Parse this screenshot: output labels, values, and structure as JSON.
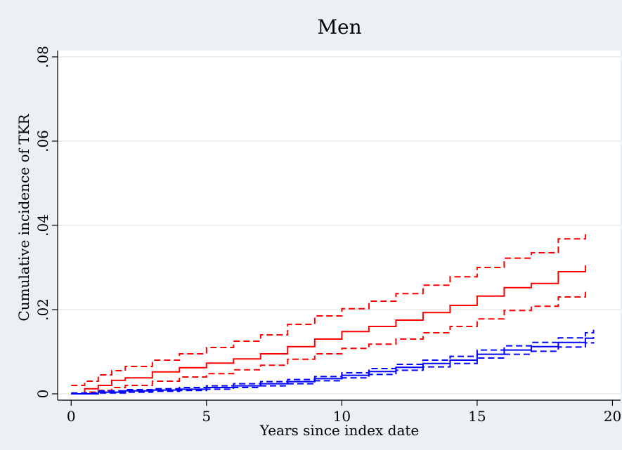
{
  "chart_data": {
    "type": "line",
    "title": "Men",
    "xlabel": "Years since index date",
    "ylabel": "Cumulative incidence of TKR",
    "xlim": [
      -0.5,
      20.3
    ],
    "ylim": [
      -0.0015,
      0.0815
    ],
    "xticks": [
      0,
      5,
      10,
      15,
      20
    ],
    "xtick_labels": [
      "0",
      "5",
      "10",
      "15",
      "20"
    ],
    "yticks": [
      0,
      0.02,
      0.04,
      0.06,
      0.08
    ],
    "ytick_labels": [
      "0",
      ".02",
      ".04",
      ".06",
      ".08"
    ],
    "grid": true,
    "legend": "none",
    "background_color": "#eaf0f3",
    "plot_background": "#ffffff",
    "gridline_color": "#e6e6e6",
    "series": [
      {
        "color": "#ff0000",
        "dash": false,
        "x": [
          0,
          0.5,
          1,
          1.5,
          2,
          3,
          4,
          5,
          6,
          7,
          8,
          9,
          10,
          11,
          12,
          13,
          14,
          15,
          16,
          17,
          18,
          19
        ],
        "y": [
          0,
          0.0012,
          0.002,
          0.0032,
          0.0038,
          0.0052,
          0.0062,
          0.0073,
          0.0083,
          0.0095,
          0.0112,
          0.013,
          0.0148,
          0.016,
          0.0175,
          0.0193,
          0.021,
          0.0232,
          0.0252,
          0.0262,
          0.029,
          0.0305
        ]
      },
      {
        "color": "#ff0000",
        "dash": true,
        "x": [
          0,
          0.5,
          1,
          1.5,
          2,
          3,
          4,
          5,
          6,
          7,
          8,
          9,
          10,
          11,
          12,
          13,
          14,
          15,
          16,
          17,
          18,
          19
        ],
        "y": [
          0.002,
          0.003,
          0.0045,
          0.0055,
          0.0065,
          0.008,
          0.0095,
          0.011,
          0.0125,
          0.014,
          0.0165,
          0.0185,
          0.0202,
          0.022,
          0.0238,
          0.0258,
          0.0278,
          0.03,
          0.0322,
          0.0335,
          0.0368,
          0.038
        ]
      },
      {
        "color": "#ff0000",
        "dash": true,
        "x": [
          0,
          0.5,
          1,
          1.5,
          2,
          3,
          4,
          5,
          6,
          7,
          8,
          9,
          10,
          11,
          12,
          13,
          14,
          15,
          16,
          17,
          18,
          19
        ],
        "y": [
          0,
          0.0004,
          0.0008,
          0.0015,
          0.002,
          0.003,
          0.004,
          0.0048,
          0.0057,
          0.0068,
          0.0082,
          0.0095,
          0.0108,
          0.0118,
          0.013,
          0.0145,
          0.016,
          0.0178,
          0.0198,
          0.0208,
          0.023,
          0.0245
        ]
      },
      {
        "color": "#0000ff",
        "dash": false,
        "x": [
          0,
          1,
          2,
          3,
          4,
          5,
          6,
          7,
          8,
          9,
          10,
          11,
          12,
          13,
          14,
          15,
          16,
          17,
          18,
          19,
          19.3
        ],
        "y": [
          0,
          0.0004,
          0.0007,
          0.0009,
          0.0011,
          0.0015,
          0.0019,
          0.0024,
          0.0029,
          0.0036,
          0.0044,
          0.0053,
          0.0063,
          0.0072,
          0.008,
          0.0094,
          0.0104,
          0.0112,
          0.0122,
          0.0132,
          0.0135
        ]
      },
      {
        "color": "#0000ff",
        "dash": true,
        "x": [
          0,
          1,
          2,
          3,
          4,
          5,
          6,
          7,
          8,
          9,
          10,
          11,
          12,
          13,
          14,
          15,
          16,
          17,
          18,
          19,
          19.3
        ],
        "y": [
          0.0002,
          0.0007,
          0.001,
          0.0012,
          0.0015,
          0.0019,
          0.0024,
          0.0029,
          0.0034,
          0.0041,
          0.005,
          0.006,
          0.007,
          0.008,
          0.0089,
          0.0104,
          0.0114,
          0.0122,
          0.0133,
          0.0145,
          0.0152
        ]
      },
      {
        "color": "#0000ff",
        "dash": true,
        "x": [
          0,
          1,
          2,
          3,
          4,
          5,
          6,
          7,
          8,
          9,
          10,
          11,
          12,
          13,
          14,
          15,
          16,
          17,
          18,
          19,
          19.3
        ],
        "y": [
          0,
          0.0002,
          0.0004,
          0.0006,
          0.0008,
          0.0011,
          0.0015,
          0.0019,
          0.0024,
          0.0031,
          0.0038,
          0.0046,
          0.0056,
          0.0064,
          0.0072,
          0.0085,
          0.0094,
          0.0101,
          0.0111,
          0.0121,
          0.0123
        ]
      }
    ]
  }
}
